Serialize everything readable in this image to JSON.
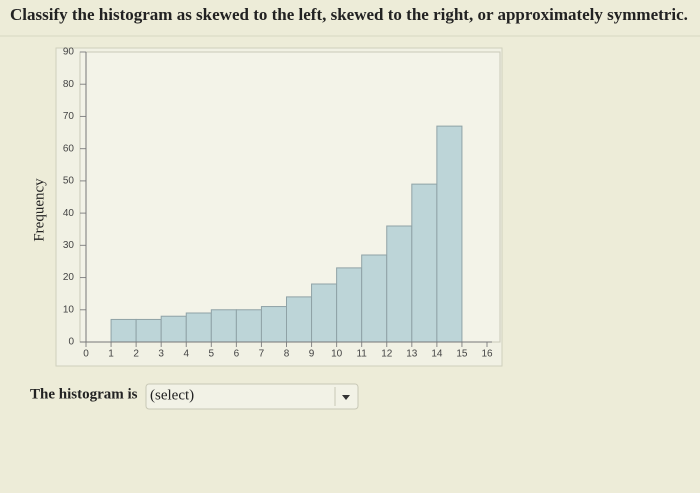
{
  "question": "Classify the histogram as skewed to the left, skewed to the right, or approximately symmetric.",
  "chart_data": {
    "type": "histogram",
    "y_label": "Frequency",
    "bins": [
      1,
      2,
      3,
      4,
      5,
      6,
      7,
      8,
      9,
      10,
      11,
      12,
      13,
      14,
      15
    ],
    "values": [
      7,
      7,
      8,
      9,
      10,
      10,
      11,
      14,
      18,
      23,
      27,
      36,
      49,
      67
    ],
    "color": "#bdd5d8",
    "xlim": [
      0,
      16
    ],
    "xticks": [
      0,
      1,
      2,
      3,
      4,
      5,
      6,
      7,
      8,
      9,
      10,
      11,
      12,
      13,
      14,
      15,
      16
    ],
    "ylim": [
      0,
      90
    ],
    "yticks": [
      0,
      10,
      20,
      30,
      40,
      50,
      60,
      70,
      80,
      90
    ]
  },
  "answer_prompt": "The histogram is",
  "dropdown": "(select)"
}
